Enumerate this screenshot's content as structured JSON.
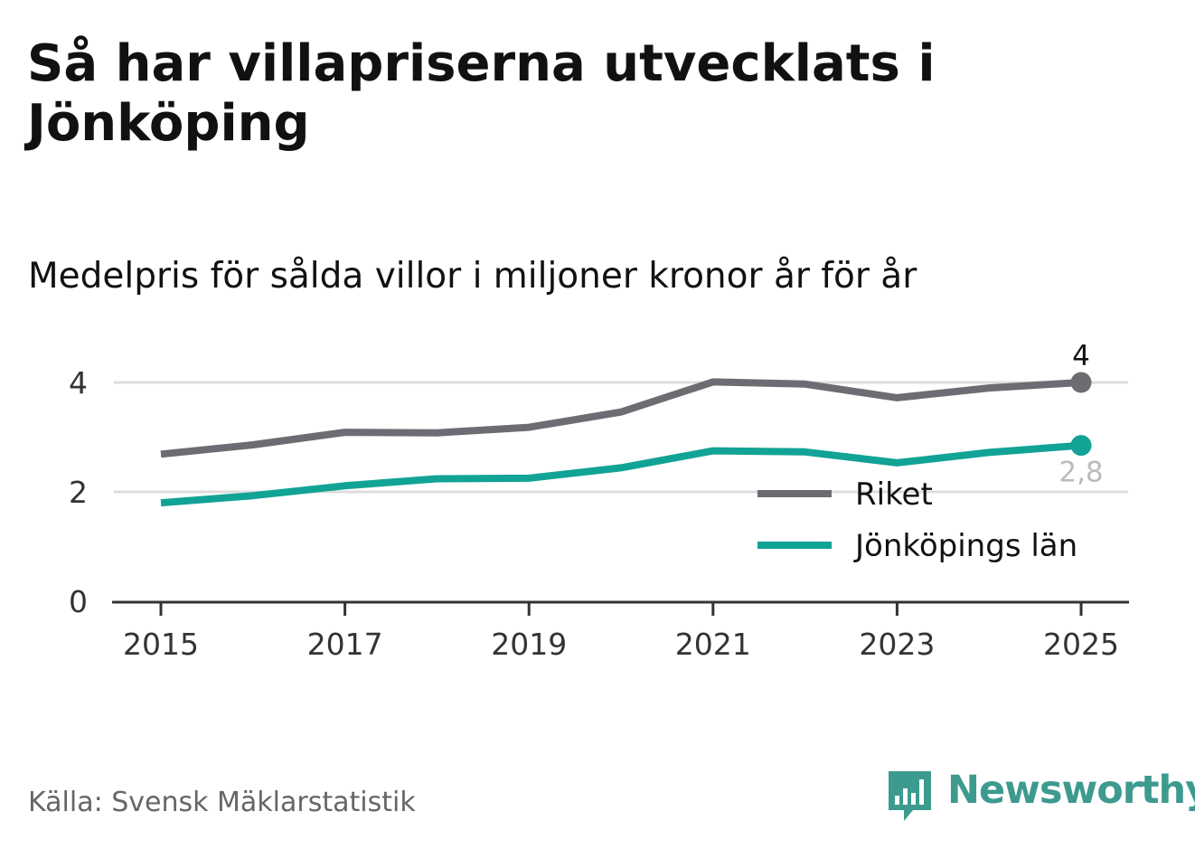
{
  "title": "Så har villapriserna utvecklats i Jönköping",
  "subtitle": "Medelpris för sålda villor i miljoner kronor år för år",
  "source": "Källa: Svensk Mäklarstatistik",
  "brand": {
    "name": "Newsworthy",
    "color": "#3d9a8f"
  },
  "colors": {
    "riket": "#6d6c72",
    "lan": "#11a396",
    "grid": "#dddddd",
    "axis": "#333333",
    "muted": "#bbbbbb"
  },
  "chart_data": {
    "type": "line",
    "title": "Så har villapriserna utvecklats i Jönköping",
    "subtitle": "Medelpris för sålda villor i miljoner kronor år för år",
    "xlabel": "",
    "ylabel": "",
    "ylim": [
      0,
      4
    ],
    "yticks": [
      0,
      2,
      4
    ],
    "yticklabels": [
      "0",
      "2",
      "4"
    ],
    "xlim": [
      2015,
      2025
    ],
    "xticks": [
      2015,
      2017,
      2019,
      2021,
      2023,
      2025
    ],
    "xticklabels": [
      "2015",
      "2017",
      "2019",
      "2021",
      "2023",
      "2025"
    ],
    "x": [
      2015,
      2016,
      2017,
      2018,
      2019,
      2020,
      2021,
      2022,
      2023,
      2024,
      2025
    ],
    "grid": true,
    "legend_position": "right",
    "series": [
      {
        "key": "riket",
        "name": "Riket",
        "values": [
          2.69,
          2.86,
          3.09,
          3.08,
          3.18,
          3.46,
          4.01,
          3.97,
          3.72,
          3.9,
          4.0
        ],
        "end_label": "4"
      },
      {
        "key": "lan",
        "name": "Jönköpings län",
        "values": [
          1.8,
          1.93,
          2.11,
          2.24,
          2.25,
          2.44,
          2.75,
          2.73,
          2.53,
          2.72,
          2.85
        ],
        "end_label": "2,8"
      }
    ]
  }
}
